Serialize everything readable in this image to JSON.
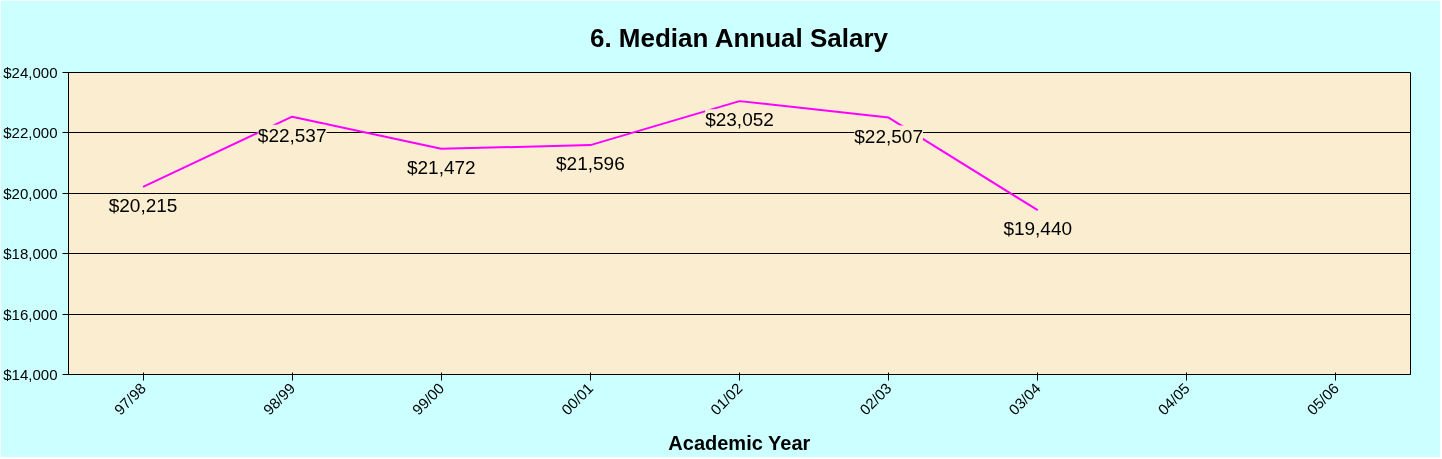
{
  "chart_data": {
    "type": "line",
    "title": "6. Median Annual Salary",
    "xlabel": "Academic Year",
    "categories": [
      "97/98",
      "98/99",
      "99/00",
      "00/01",
      "01/02",
      "02/03",
      "03/04",
      "04/05",
      "05/06"
    ],
    "series": [
      {
        "color": "#ff00ff",
        "values": [
          20215,
          22537,
          21472,
          21596,
          23052,
          22507,
          19440,
          null,
          null
        ],
        "value_labels": [
          "$20,215",
          "$22,537",
          "$21,472",
          "$21,596",
          "$23,052",
          "$22,507",
          "$19,440",
          null,
          null
        ]
      }
    ],
    "ylim": [
      14000,
      24000
    ],
    "yticks": [
      {
        "value": 14000,
        "label": "$14,000"
      },
      {
        "value": 16000,
        "label": "$16,000"
      },
      {
        "value": 18000,
        "label": "$18,000"
      },
      {
        "value": 20000,
        "label": "$20,000"
      },
      {
        "value": 22000,
        "label": "$22,000"
      },
      {
        "value": 24000,
        "label": "$24,000"
      }
    ],
    "grid": "y",
    "marker": "none",
    "line_style": "solid"
  }
}
